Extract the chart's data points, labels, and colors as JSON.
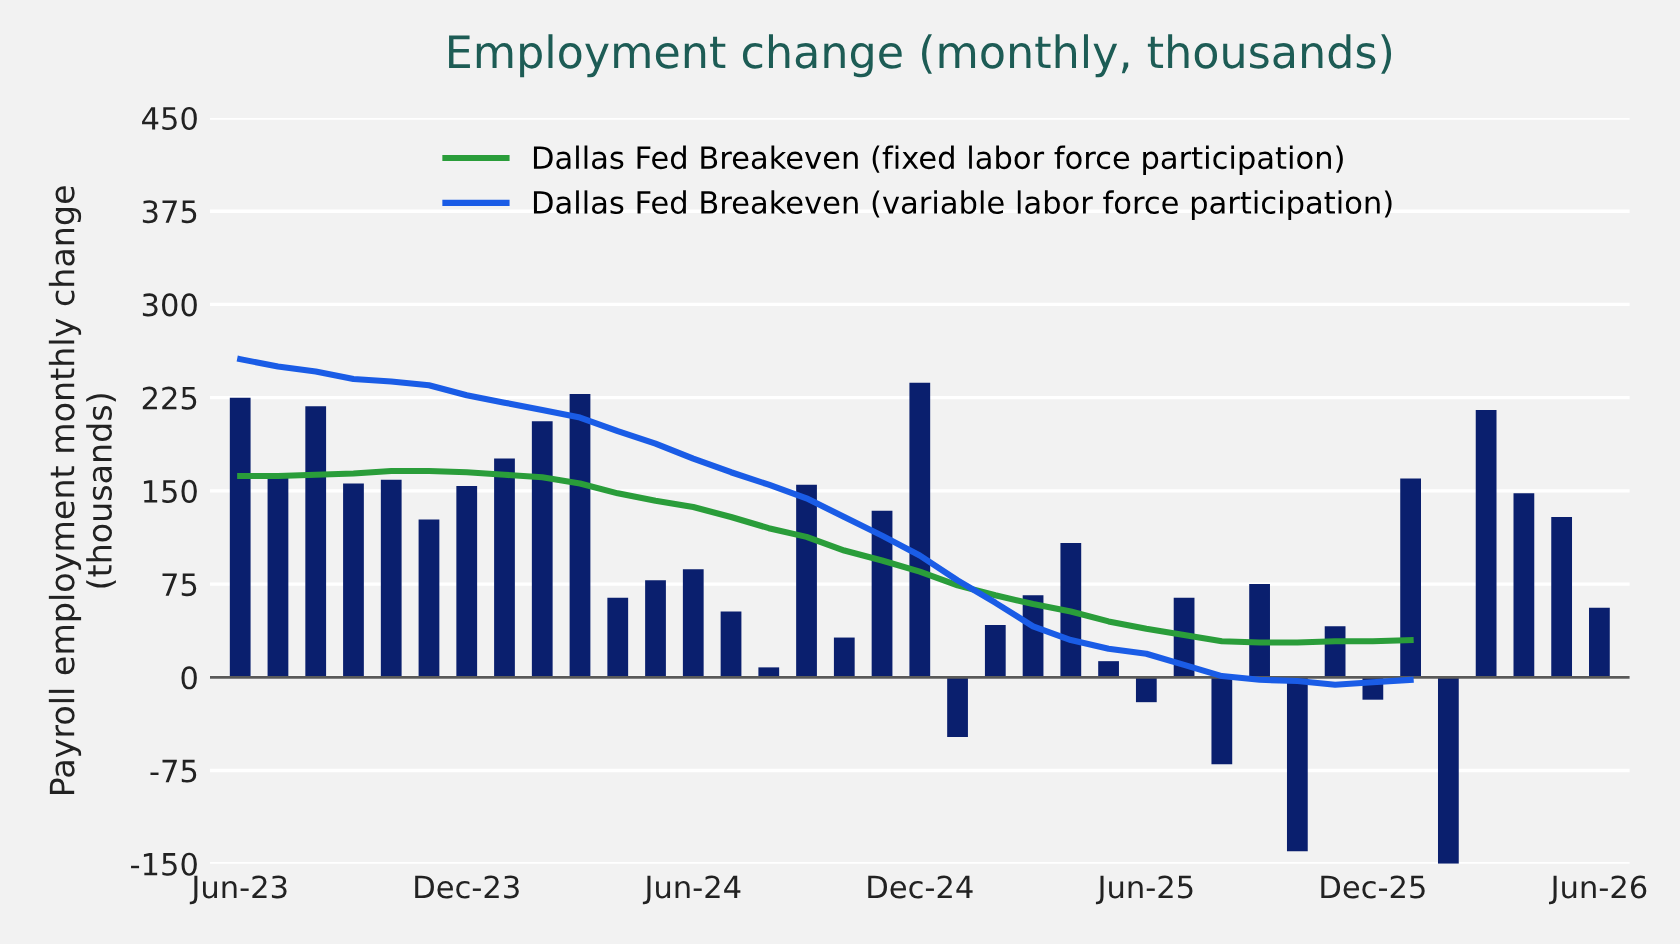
{
  "chart_data": {
    "type": "bar",
    "title": "Employment change (monthly, thousands)",
    "ylabel": "Payroll employment monthly change\n(thousands)",
    "categories": [
      "Jun-23",
      null,
      null,
      null,
      null,
      null,
      "Dec-23",
      null,
      null,
      null,
      null,
      null,
      "Jun-24",
      null,
      null,
      null,
      null,
      null,
      "Dec-24",
      null,
      null,
      null,
      null,
      null,
      "Jun-25",
      null,
      null,
      null,
      null,
      null,
      "Dec-25",
      null,
      null,
      null,
      null,
      null,
      "Jun-26"
    ],
    "series": [
      {
        "color": "#0a1f6e",
        "values": [
          225,
          162,
          218,
          156,
          159,
          127,
          154,
          176,
          206,
          228,
          64,
          78,
          87,
          53,
          8,
          155,
          32,
          134,
          237,
          -48,
          42,
          66,
          108,
          13,
          -20,
          64,
          -70,
          75,
          -140,
          41,
          -18,
          160,
          -150,
          215,
          148,
          129,
          56
        ]
      },
      {
        "type": "line",
        "name": "Dallas Fed Breakeven (fixed labor force participation)",
        "color": "#2a9d3a",
        "values": [
          162,
          162,
          163,
          164,
          166,
          166,
          165,
          163,
          161,
          156,
          148,
          142,
          137,
          129,
          120,
          113,
          102,
          94,
          85,
          74,
          66,
          59,
          53,
          45,
          39,
          34,
          29,
          28,
          28,
          29,
          29,
          30,
          null,
          null,
          null,
          null,
          null
        ]
      },
      {
        "type": "line",
        "name": "Dallas Fed Breakeven (variable labor force participation)",
        "color": "#1a5ce6",
        "values": [
          256,
          250,
          246,
          240,
          238,
          235,
          227,
          221,
          215,
          209,
          198,
          188,
          176,
          165,
          155,
          144,
          129,
          114,
          98,
          78,
          60,
          41,
          30,
          23,
          19,
          10,
          1,
          -2,
          -3,
          -6,
          -4,
          -2,
          null,
          null,
          null,
          null,
          null
        ]
      }
    ],
    "ylim": [
      -150,
      450
    ],
    "yticks": [
      -150,
      -75,
      0,
      75,
      150,
      225,
      300,
      375,
      450
    ],
    "grid": "y",
    "legend": "top",
    "ref_lines": [
      {
        "axis": "y",
        "value": 0,
        "color": "#595959"
      }
    ]
  }
}
